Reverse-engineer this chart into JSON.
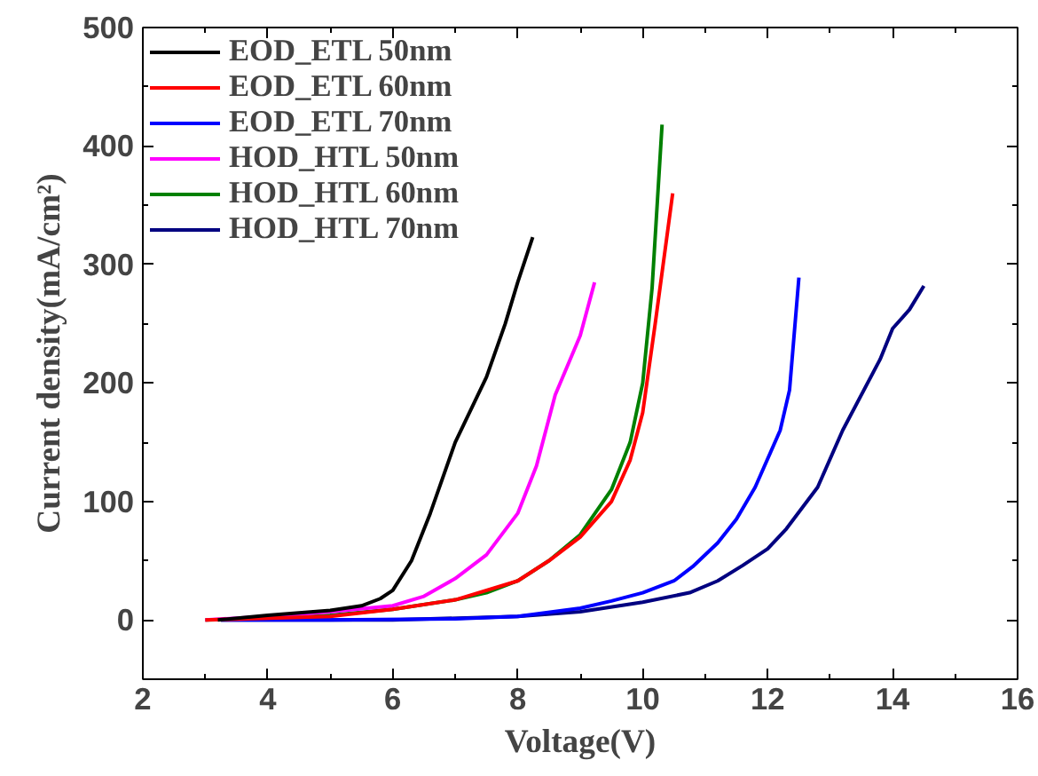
{
  "chart_data": {
    "type": "line",
    "xlabel": "Voltage(V)",
    "ylabel": "Current density(mA/cm²)",
    "xlim": [
      2,
      16
    ],
    "ylim": [
      -50,
      500
    ],
    "xticks": [
      2,
      4,
      6,
      8,
      10,
      12,
      14,
      16
    ],
    "yticks": [
      0,
      100,
      200,
      300,
      400,
      500
    ],
    "grid": false,
    "legend": "top left",
    "marker": "none",
    "line_style": "solid",
    "series": [
      {
        "name": "EOD_ETL 50nm",
        "color": "#000000",
        "x": [
          3.2,
          4,
          5,
          5.5,
          5.8,
          6,
          6.3,
          6.6,
          7,
          7.5,
          7.8,
          8,
          8.24
        ],
        "values": [
          0,
          4,
          8,
          12,
          18,
          25,
          50,
          90,
          150,
          205,
          250,
          285,
          323
        ]
      },
      {
        "name": "EOD_ETL 60nm",
        "color": "#ff0000",
        "x": [
          3,
          5,
          6,
          7,
          8,
          8.5,
          9,
          9.5,
          9.8,
          10,
          10.2,
          10.48
        ],
        "values": [
          0,
          3,
          9,
          17,
          33,
          50,
          70,
          100,
          135,
          175,
          250,
          360
        ]
      },
      {
        "name": "EOD_ETL 70nm",
        "color": "#0000ff",
        "x": [
          3.25,
          5,
          7,
          8,
          9,
          9.5,
          10,
          10.5,
          10.8,
          11.2,
          11.5,
          11.8,
          12.2,
          12.35,
          12.5
        ],
        "values": [
          0,
          0,
          1,
          3,
          10,
          16,
          23,
          33,
          45,
          65,
          85,
          112,
          160,
          194,
          289
        ]
      },
      {
        "name": "HOD_HTL 50nm",
        "color": "#ff00ff",
        "x": [
          3,
          4,
          5,
          6,
          6.5,
          7,
          7.5,
          8,
          8.3,
          8.6,
          9,
          9.23
        ],
        "values": [
          0,
          3,
          7,
          12,
          20,
          35,
          55,
          90,
          130,
          190,
          240,
          285
        ]
      },
      {
        "name": "HOD_HTL 60nm",
        "color": "#008000",
        "x": [
          3,
          4,
          5,
          6,
          7,
          7.5,
          8,
          8.5,
          9,
          9.5,
          9.8,
          10,
          10.15,
          10.31
        ],
        "values": [
          0,
          1,
          4,
          9,
          17,
          23,
          33,
          50,
          72,
          110,
          150,
          200,
          280,
          418
        ]
      },
      {
        "name": "HOD_HTL 70nm",
        "color": "#000080",
        "x": [
          3.25,
          6,
          8,
          9,
          10,
          10.75,
          11.2,
          11.6,
          12,
          12.3,
          12.8,
          13.2,
          13.8,
          14,
          14.27,
          14.5
        ],
        "values": [
          0,
          0,
          3,
          7,
          15,
          23,
          33,
          46,
          60,
          77,
          112,
          160,
          220,
          246,
          262,
          282
        ]
      }
    ]
  }
}
